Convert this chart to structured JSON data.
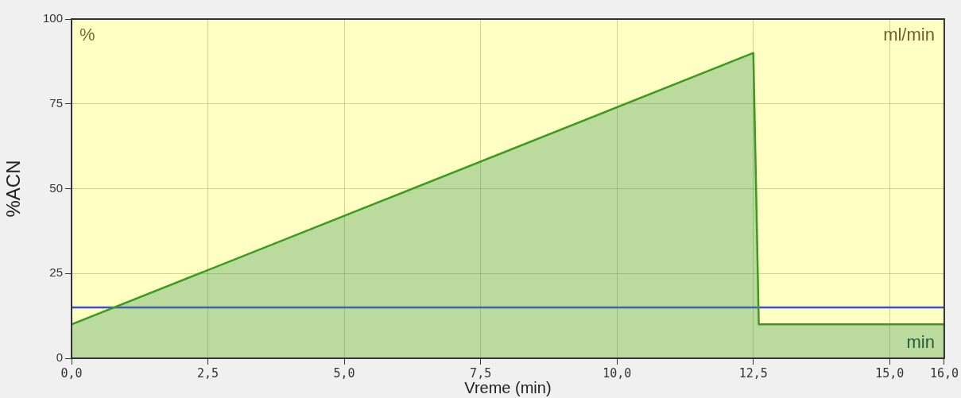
{
  "chart_data": {
    "type": "area",
    "xlabel": "Vreme (min)",
    "ylabel": "%ACN",
    "annotations": [
      "%",
      "ml/min",
      "min"
    ],
    "series": [
      {
        "color": "#3c9a1e",
        "x": [
          0,
          12.5,
          12.6,
          16
        ],
        "values": [
          10,
          90,
          10,
          10
        ]
      },
      {
        "type": "line",
        "color": "#3a4fd8",
        "x": [
          0,
          16
        ],
        "values": [
          15,
          15
        ]
      }
    ],
    "xlim": [
      0,
      16
    ],
    "xticks": [
      {
        "value": 0,
        "label": "0,0"
      },
      {
        "value": 2.5,
        "label": "2,5"
      },
      {
        "value": 5,
        "label": "5,0"
      },
      {
        "value": 7.5,
        "label": "7,5"
      },
      {
        "value": 10,
        "label": "10,0"
      },
      {
        "value": 12.5,
        "label": "12,5"
      },
      {
        "value": 15,
        "label": "15,0"
      },
      {
        "value": 16,
        "label": "16,0"
      }
    ],
    "ylim": [
      0,
      100
    ],
    "yticks": [
      0,
      25,
      50,
      75,
      100
    ],
    "grid": true,
    "legend": false,
    "marker": "none",
    "line_style": "solid"
  }
}
